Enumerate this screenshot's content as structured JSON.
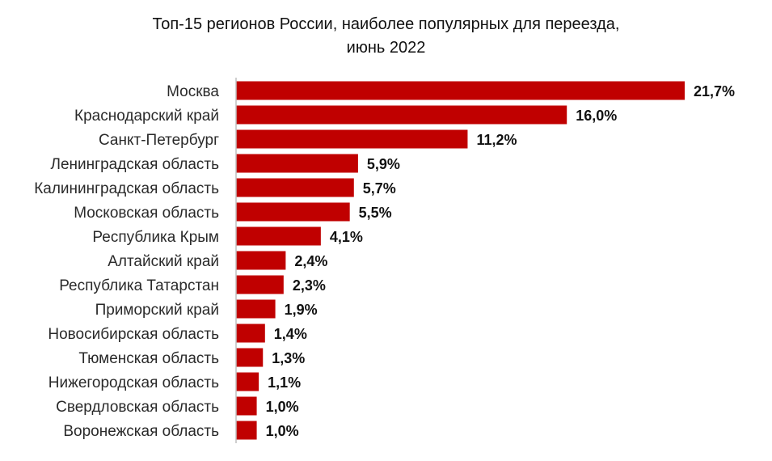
{
  "chart_data": {
    "type": "bar",
    "orientation": "horizontal",
    "title_line1": "Топ-15 регионов России, наиболее популярных для переезда,",
    "title_line2": "июнь 2022",
    "categories": [
      "Москва",
      "Краснодарский край",
      "Санкт-Петербург",
      "Ленинградская область",
      "Калининградская область",
      "Московская область",
      "Республика Крым",
      "Алтайский край",
      "Республика Татарстан",
      "Приморский край",
      "Новосибирская область",
      "Тюменская область",
      "Нижегородская область",
      "Свердловская область",
      "Воронежская область"
    ],
    "values": [
      21.7,
      16.0,
      11.2,
      5.9,
      5.7,
      5.5,
      4.1,
      2.4,
      2.3,
      1.9,
      1.4,
      1.3,
      1.1,
      1.0,
      1.0
    ],
    "value_labels": [
      "21,7%",
      "16,0%",
      "11,2%",
      "5,9%",
      "5,7%",
      "5,5%",
      "4,1%",
      "2,4%",
      "2,3%",
      "1,9%",
      "1,4%",
      "1,3%",
      "1,1%",
      "1,0%",
      "1,0%"
    ],
    "xlim": [
      0,
      21.7
    ],
    "xlabel": "",
    "ylabel": "",
    "grid": false,
    "legend": "none",
    "bar_color": "#c00000",
    "axis_color": "#bfbfbf"
  }
}
